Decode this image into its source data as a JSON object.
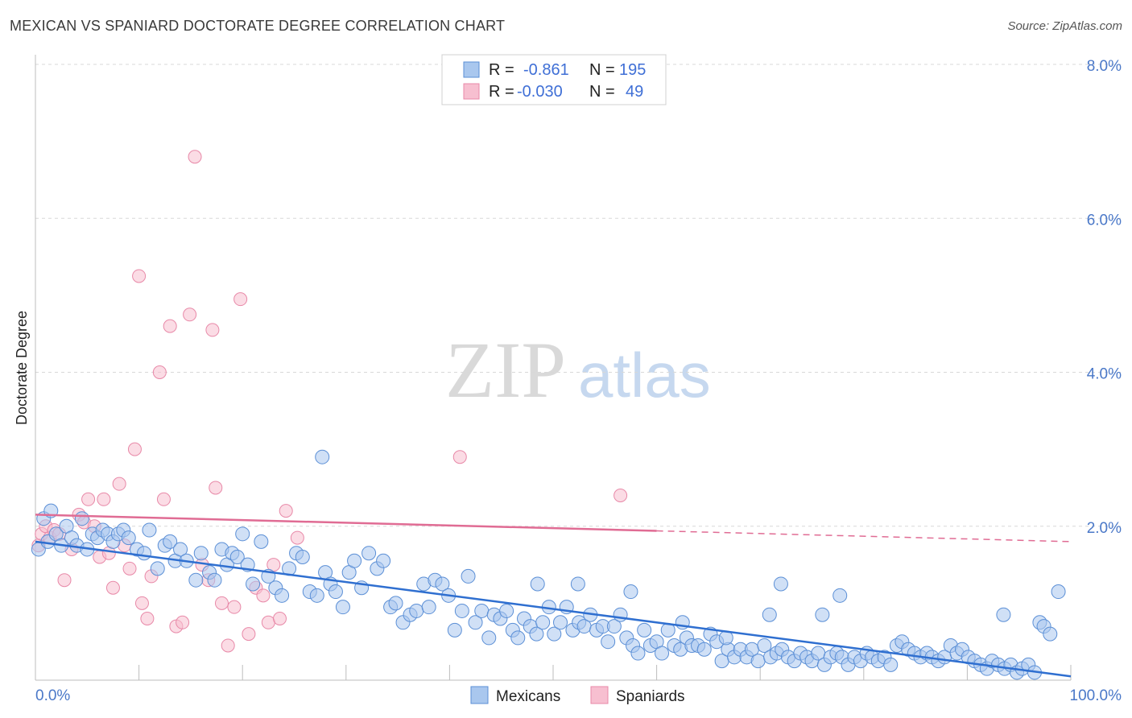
{
  "title": "MEXICAN VS SPANIARD DOCTORATE DEGREE CORRELATION CHART",
  "source": "Source: ZipAtlas.com",
  "watermark": {
    "zip": "ZIP",
    "atlas": "atlas"
  },
  "colors": {
    "blue_fill": "#a9c7ee",
    "blue_stroke": "#5b8fd6",
    "blue_line": "#2f6fd0",
    "pink_fill": "#f7bfd0",
    "pink_stroke": "#e889a8",
    "pink_line": "#e06c94",
    "grid": "#d8d8d8",
    "tick_text": "#4a78c8"
  },
  "legend_top": {
    "rows": [
      {
        "r_label": "R =",
        "r_value": "-0.861",
        "n_label": "N =",
        "n_value": "195",
        "series": "Mexicans"
      },
      {
        "r_label": "R =",
        "r_value": "-0.030",
        "n_label": "N =",
        "n_value": "49",
        "series": "Spaniards"
      }
    ]
  },
  "legend_bottom": [
    "Mexicans",
    "Spaniards"
  ],
  "chart_data": {
    "type": "scatter",
    "title": "MEXICAN VS SPANIARD DOCTORATE DEGREE CORRELATION CHART",
    "xlabel": "",
    "ylabel": "Doctorate Degree",
    "xlim": [
      0,
      100
    ],
    "ylim": [
      0,
      8.0
    ],
    "x_tick_labels": [
      "0.0%",
      "100.0%"
    ],
    "y_ticks": [
      2.0,
      4.0,
      6.0,
      8.0
    ],
    "y_tick_labels": [
      "2.0%",
      "4.0%",
      "6.0%",
      "8.0%"
    ],
    "grid": true,
    "series": [
      {
        "name": "Mexicans",
        "r": -0.861,
        "n": 195,
        "trend": {
          "x0": 0,
          "y0": 1.8,
          "x1": 100,
          "y1": 0.05,
          "dashed_from": null
        },
        "points": [
          [
            0.3,
            1.7
          ],
          [
            0.8,
            2.1
          ],
          [
            1.2,
            1.8
          ],
          [
            1.5,
            2.2
          ],
          [
            2,
            1.9
          ],
          [
            2.5,
            1.75
          ],
          [
            3,
            2.0
          ],
          [
            3.5,
            1.85
          ],
          [
            4,
            1.75
          ],
          [
            4.5,
            2.1
          ],
          [
            5,
            1.7
          ],
          [
            5.5,
            1.9
          ],
          [
            6,
            1.85
          ],
          [
            6.5,
            1.95
          ],
          [
            7,
            1.9
          ],
          [
            7.5,
            1.8
          ],
          [
            8,
            1.9
          ],
          [
            8.5,
            1.95
          ],
          [
            9,
            1.85
          ],
          [
            9.8,
            1.7
          ],
          [
            10.5,
            1.65
          ],
          [
            11,
            1.95
          ],
          [
            11.8,
            1.45
          ],
          [
            12.5,
            1.75
          ],
          [
            13,
            1.8
          ],
          [
            13.5,
            1.55
          ],
          [
            14,
            1.7
          ],
          [
            14.6,
            1.55
          ],
          [
            15.5,
            1.3
          ],
          [
            16,
            1.65
          ],
          [
            16.8,
            1.4
          ],
          [
            17.3,
            1.3
          ],
          [
            18,
            1.7
          ],
          [
            18.5,
            1.5
          ],
          [
            19,
            1.65
          ],
          [
            19.5,
            1.6
          ],
          [
            20,
            1.9
          ],
          [
            20.5,
            1.5
          ],
          [
            21,
            1.25
          ],
          [
            21.8,
            1.8
          ],
          [
            22.5,
            1.35
          ],
          [
            23.2,
            1.2
          ],
          [
            23.8,
            1.1
          ],
          [
            24.5,
            1.45
          ],
          [
            25.2,
            1.65
          ],
          [
            25.8,
            1.6
          ],
          [
            26.5,
            1.15
          ],
          [
            27.2,
            1.1
          ],
          [
            28,
            1.4
          ],
          [
            28.5,
            1.25
          ],
          [
            29,
            1.15
          ],
          [
            29.7,
            0.95
          ],
          [
            30.3,
            1.4
          ],
          [
            30.8,
            1.55
          ],
          [
            31.5,
            1.2
          ],
          [
            32.2,
            1.65
          ],
          [
            33,
            1.45
          ],
          [
            33.6,
            1.55
          ],
          [
            34.3,
            0.95
          ],
          [
            34.8,
            1.0
          ],
          [
            35.5,
            0.75
          ],
          [
            36.2,
            0.85
          ],
          [
            36.8,
            0.9
          ],
          [
            37.5,
            1.25
          ],
          [
            38,
            0.95
          ],
          [
            38.6,
            1.3
          ],
          [
            39.3,
            1.25
          ],
          [
            39.9,
            1.1
          ],
          [
            40.5,
            0.65
          ],
          [
            41.2,
            0.9
          ],
          [
            41.8,
            1.35
          ],
          [
            42.5,
            0.75
          ],
          [
            43.1,
            0.9
          ],
          [
            43.8,
            0.55
          ],
          [
            44.3,
            0.85
          ],
          [
            44.9,
            0.8
          ],
          [
            45.5,
            0.9
          ],
          [
            46.1,
            0.65
          ],
          [
            46.6,
            0.55
          ],
          [
            47.2,
            0.8
          ],
          [
            47.8,
            0.7
          ],
          [
            48.4,
            0.6
          ],
          [
            49,
            0.75
          ],
          [
            49.6,
            0.95
          ],
          [
            50.1,
            0.6
          ],
          [
            50.7,
            0.75
          ],
          [
            51.3,
            0.95
          ],
          [
            51.9,
            0.65
          ],
          [
            52.5,
            0.75
          ],
          [
            53,
            0.7
          ],
          [
            53.6,
            0.85
          ],
          [
            54.2,
            0.65
          ],
          [
            54.8,
            0.7
          ],
          [
            55.3,
            0.5
          ],
          [
            55.9,
            0.7
          ],
          [
            56.5,
            0.85
          ],
          [
            57.1,
            0.55
          ],
          [
            57.7,
            0.45
          ],
          [
            58.2,
            0.35
          ],
          [
            58.8,
            0.65
          ],
          [
            59.4,
            0.45
          ],
          [
            60,
            0.5
          ],
          [
            60.5,
            0.35
          ],
          [
            61.1,
            0.65
          ],
          [
            61.7,
            0.45
          ],
          [
            62.3,
            0.4
          ],
          [
            62.9,
            0.55
          ],
          [
            63.4,
            0.45
          ],
          [
            64,
            0.45
          ],
          [
            64.6,
            0.4
          ],
          [
            65.2,
            0.6
          ],
          [
            65.8,
            0.5
          ],
          [
            66.3,
            0.25
          ],
          [
            66.9,
            0.4
          ],
          [
            67.5,
            0.3
          ],
          [
            68.1,
            0.4
          ],
          [
            68.7,
            0.3
          ],
          [
            69.2,
            0.4
          ],
          [
            69.8,
            0.25
          ],
          [
            70.4,
            0.45
          ],
          [
            71,
            0.3
          ],
          [
            71.6,
            0.35
          ],
          [
            72.1,
            0.4
          ],
          [
            72.7,
            0.3
          ],
          [
            73.3,
            0.25
          ],
          [
            73.9,
            0.35
          ],
          [
            74.5,
            0.3
          ],
          [
            75,
            0.25
          ],
          [
            75.6,
            0.35
          ],
          [
            76.2,
            0.2
          ],
          [
            76.8,
            0.3
          ],
          [
            77.4,
            0.35
          ],
          [
            77.9,
            0.3
          ],
          [
            78.5,
            0.2
          ],
          [
            79.1,
            0.3
          ],
          [
            79.7,
            0.25
          ],
          [
            80.3,
            0.35
          ],
          [
            80.8,
            0.3
          ],
          [
            81.4,
            0.25
          ],
          [
            82,
            0.3
          ],
          [
            82.6,
            0.2
          ],
          [
            83.2,
            0.45
          ],
          [
            83.7,
            0.5
          ],
          [
            84.3,
            0.4
          ],
          [
            84.9,
            0.35
          ],
          [
            85.5,
            0.3
          ],
          [
            86.1,
            0.35
          ],
          [
            86.6,
            0.3
          ],
          [
            87.2,
            0.25
          ],
          [
            87.8,
            0.3
          ],
          [
            88.4,
            0.45
          ],
          [
            89,
            0.35
          ],
          [
            89.5,
            0.4
          ],
          [
            90.1,
            0.3
          ],
          [
            90.7,
            0.25
          ],
          [
            91.3,
            0.2
          ],
          [
            91.9,
            0.15
          ],
          [
            92.4,
            0.25
          ],
          [
            93,
            0.2
          ],
          [
            93.6,
            0.15
          ],
          [
            94.2,
            0.2
          ],
          [
            94.8,
            0.1
          ],
          [
            95.3,
            0.15
          ],
          [
            95.9,
            0.2
          ],
          [
            96.5,
            0.1
          ],
          [
            48.5,
            1.25
          ],
          [
            52.4,
            1.25
          ],
          [
            57.5,
            1.15
          ],
          [
            72,
            1.25
          ],
          [
            77.7,
            1.1
          ],
          [
            27.7,
            2.9
          ],
          [
            76,
            0.85
          ],
          [
            93.5,
            0.85
          ],
          [
            97,
            0.75
          ],
          [
            97.4,
            0.7
          ],
          [
            98,
            0.6
          ],
          [
            98.8,
            1.15
          ],
          [
            70.9,
            0.85
          ],
          [
            62.5,
            0.75
          ],
          [
            66.7,
            0.55
          ]
        ]
      },
      {
        "name": "Spaniards",
        "r": -0.03,
        "n": 49,
        "trend": {
          "x0": 0,
          "y0": 2.15,
          "x1": 100,
          "y1": 1.8,
          "dashed_from": 60
        },
        "points": [
          [
            0.3,
            1.75
          ],
          [
            0.6,
            1.9
          ],
          [
            1,
            2.0
          ],
          [
            1.4,
            1.85
          ],
          [
            1.8,
            1.95
          ],
          [
            2.3,
            1.9
          ],
          [
            2.8,
            1.3
          ],
          [
            3.5,
            1.7
          ],
          [
            4.2,
            2.15
          ],
          [
            4.7,
            2.05
          ],
          [
            5.1,
            2.35
          ],
          [
            5.7,
            2.0
          ],
          [
            6.2,
            1.6
          ],
          [
            6.6,
            2.35
          ],
          [
            7.1,
            1.65
          ],
          [
            7.5,
            1.2
          ],
          [
            8.1,
            2.55
          ],
          [
            8.6,
            1.75
          ],
          [
            9.1,
            1.45
          ],
          [
            9.6,
            3.0
          ],
          [
            10,
            5.25
          ],
          [
            10.3,
            1.0
          ],
          [
            10.8,
            0.8
          ],
          [
            11.2,
            1.35
          ],
          [
            12,
            4.0
          ],
          [
            12.4,
            2.35
          ],
          [
            13,
            4.6
          ],
          [
            13.6,
            0.7
          ],
          [
            14.2,
            0.75
          ],
          [
            14.9,
            4.75
          ],
          [
            15.4,
            6.8
          ],
          [
            16.1,
            1.5
          ],
          [
            16.7,
            1.3
          ],
          [
            17.1,
            4.55
          ],
          [
            17.4,
            2.5
          ],
          [
            18,
            1.0
          ],
          [
            18.6,
            0.45
          ],
          [
            19.2,
            0.95
          ],
          [
            19.8,
            4.95
          ],
          [
            20.6,
            0.6
          ],
          [
            21.3,
            1.2
          ],
          [
            22,
            1.1
          ],
          [
            22.5,
            0.75
          ],
          [
            23,
            1.5
          ],
          [
            23.6,
            0.8
          ],
          [
            24.2,
            2.2
          ],
          [
            25.3,
            1.85
          ],
          [
            41,
            2.9
          ],
          [
            56.5,
            2.4
          ]
        ]
      }
    ]
  }
}
